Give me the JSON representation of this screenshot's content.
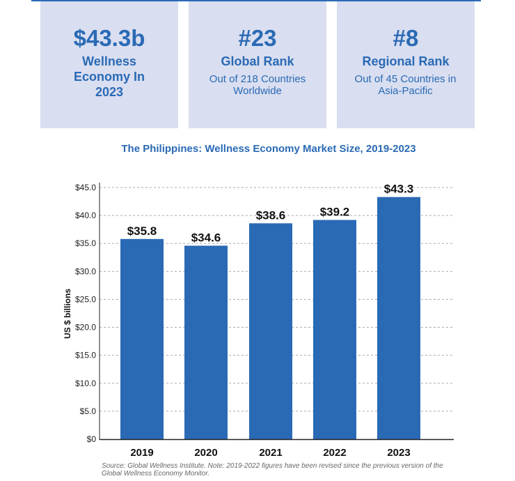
{
  "cards": [
    {
      "value": "$43.3b",
      "label": "Wellness Economy In 2023",
      "sub": ""
    },
    {
      "value": "#23",
      "label": "Global Rank",
      "sub": "Out of 218 Countries Worldwide"
    },
    {
      "value": "#8",
      "label": "Regional Rank",
      "sub": "Out of 45 Countries in Asia-Pacific"
    }
  ],
  "chart_data": {
    "type": "bar",
    "title": "The Philippines: Wellness Economy Market Size, 2019-2023",
    "categories": [
      "2019",
      "2020",
      "2021",
      "2022",
      "2023"
    ],
    "values": [
      35.8,
      34.6,
      38.6,
      39.2,
      43.3
    ],
    "data_labels": [
      "$35.8",
      "$34.6",
      "$38.6",
      "$39.2",
      "$43.3"
    ],
    "ylabel": "US $ billions",
    "xlabel": "",
    "ylim": [
      0,
      45
    ],
    "yticks": [
      "$0",
      "$5.0",
      "$10.0",
      "$15.0",
      "$20.0",
      "$25.0",
      "$30.0",
      "$35.0",
      "$40.0",
      "$45.0"
    ],
    "grid": true,
    "bar_color": "#2a6ab5"
  },
  "source": "Source: Global Wellness Institute. Note: 2019-2022 figures have been revised since the previous version of the Global Wellness Economy Monitor."
}
